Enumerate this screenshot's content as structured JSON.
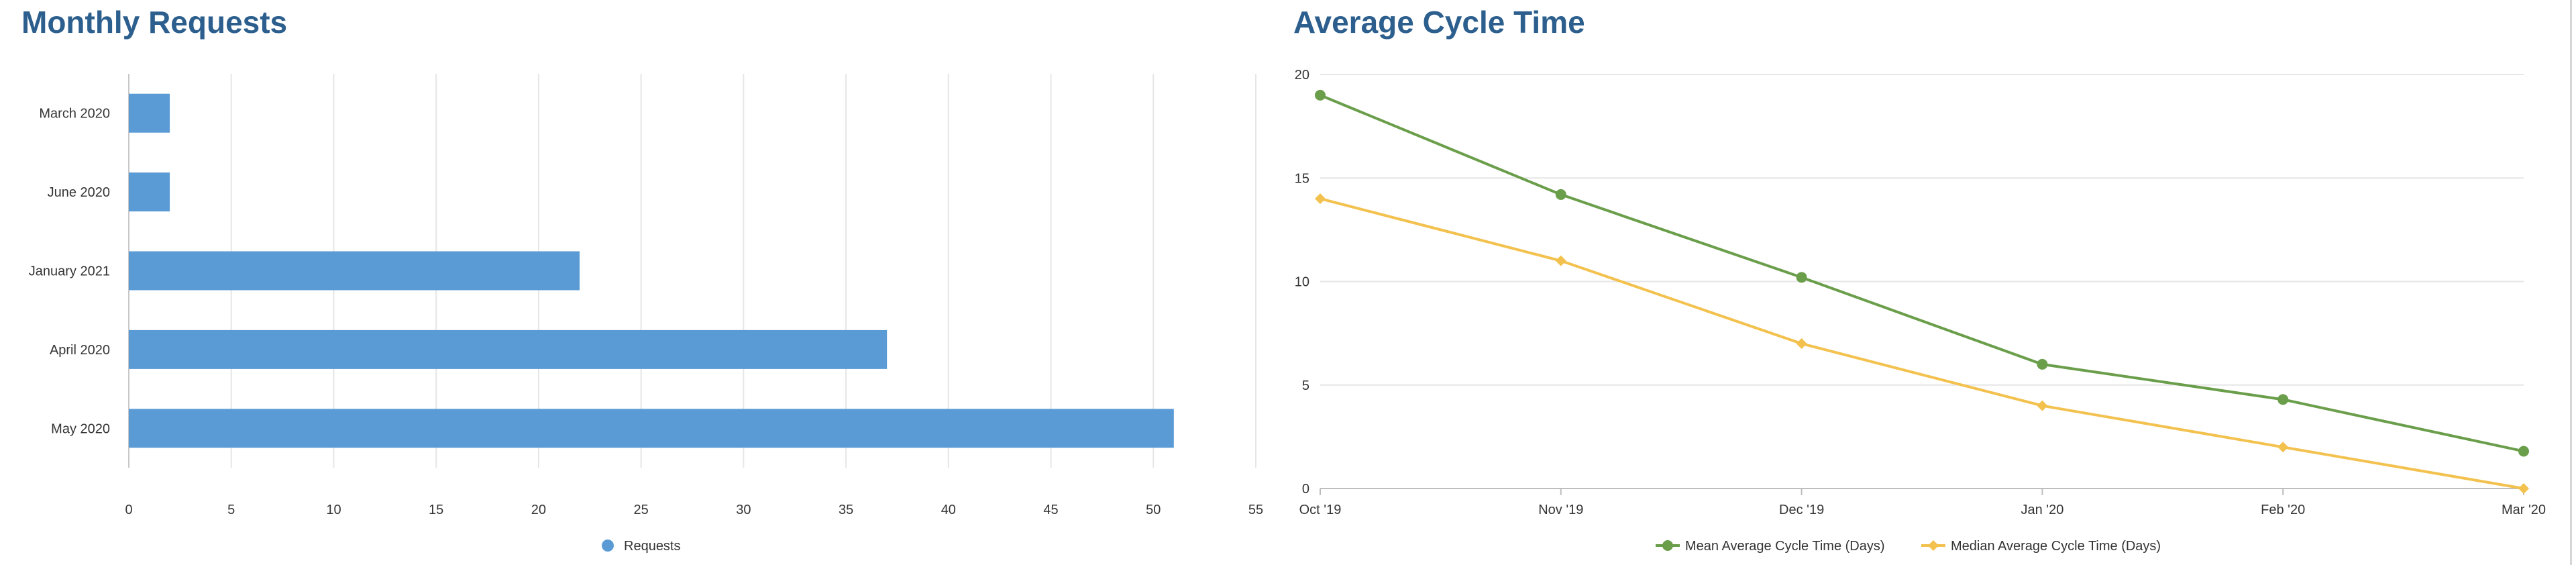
{
  "colors": {
    "title": "#2c5f8d",
    "requests_bar": "#5b9bd5",
    "mean_line": "#6a9e4b",
    "median_line": "#f3c14e",
    "grid": "#e6e6e6"
  },
  "chart_data": [
    {
      "type": "bar",
      "orientation": "horizontal",
      "title": "Monthly Requests",
      "categories": [
        "March 2020",
        "June 2020",
        "January 2021",
        "April 2020",
        "May 2020"
      ],
      "series": [
        {
          "name": "Requests",
          "values": [
            2,
            2,
            22,
            37,
            51
          ]
        }
      ],
      "xlim": [
        0,
        55
      ],
      "xticks": [
        "0",
        "5",
        "10",
        "15",
        "20",
        "25",
        "30",
        "35",
        "40",
        "45",
        "50",
        "55"
      ],
      "grid": true,
      "legend": "bottom-center"
    },
    {
      "type": "line",
      "title": "Average Cycle Time",
      "categories": [
        "Oct '19",
        "Nov '19",
        "Dec '19",
        "Jan '20",
        "Feb '20",
        "Mar '20"
      ],
      "series": [
        {
          "name": "Mean Average Cycle Time (Days)",
          "values": [
            19,
            14.2,
            10.2,
            6,
            4.3,
            1.8
          ]
        },
        {
          "name": "Median Average Cycle Time (Days)",
          "values": [
            14,
            11,
            7,
            4,
            2,
            0
          ]
        }
      ],
      "ylim": [
        0,
        20
      ],
      "yticks": [
        "0",
        "5",
        "10",
        "15",
        "20"
      ],
      "grid": true,
      "legend": "bottom-center"
    }
  ]
}
